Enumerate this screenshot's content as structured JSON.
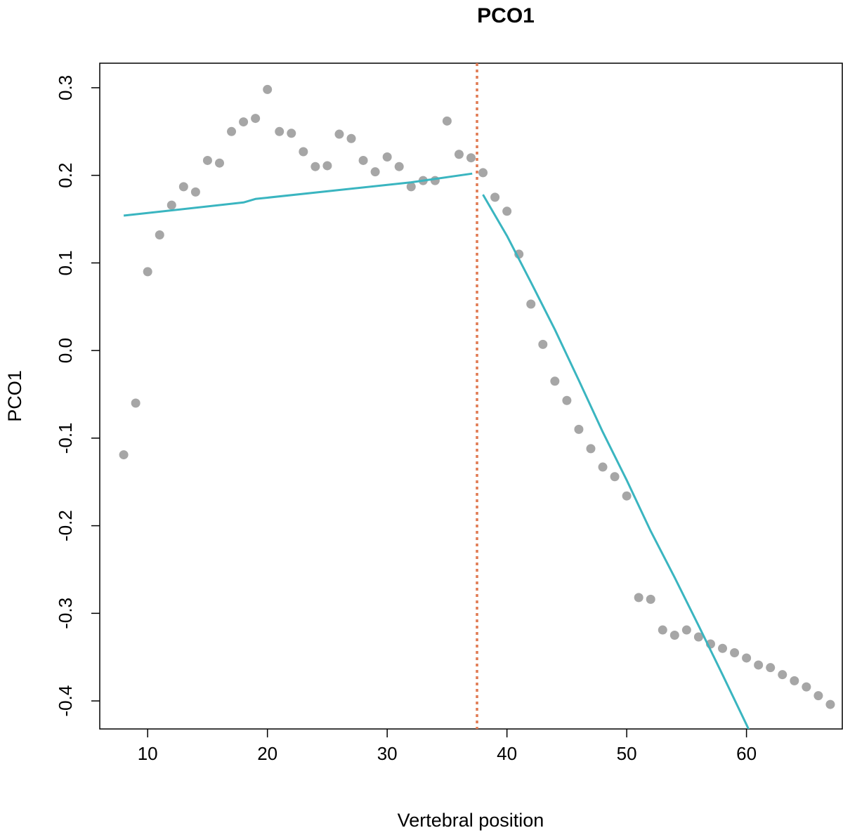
{
  "chart_data": {
    "type": "scatter",
    "title": "PCO1",
    "xlabel": "Vertebral position",
    "ylabel": "PCO1",
    "xlim": [
      6,
      68
    ],
    "ylim": [
      -0.432,
      0.328
    ],
    "xticks": [
      10,
      20,
      30,
      40,
      50,
      60
    ],
    "xtick_labels": [
      "10",
      "20",
      "30",
      "40",
      "50",
      "60"
    ],
    "yticks": [
      0.3,
      0.2,
      0.1,
      0.0,
      -0.1,
      -0.2,
      -0.3,
      -0.4
    ],
    "ytick_labels": [
      "0.3",
      "0.2",
      "0.1",
      "0.0",
      "-0.1",
      "-0.2",
      "-0.3",
      "-0.4"
    ],
    "grid": false,
    "points": {
      "color": "#a6a6a6",
      "x": [
        8,
        9,
        10,
        11,
        12,
        13,
        14,
        15,
        16,
        17,
        18,
        19,
        20,
        21,
        22,
        23,
        24,
        25,
        26,
        27,
        28,
        29,
        30,
        31,
        32,
        33,
        34,
        35,
        36,
        37,
        38,
        39,
        40,
        41,
        42,
        43,
        44,
        45,
        46,
        47,
        48,
        49,
        50,
        51,
        52,
        53,
        54,
        55,
        56,
        57,
        58,
        59,
        60,
        61,
        62,
        63,
        64,
        65,
        66,
        67
      ],
      "y": [
        -0.119,
        -0.06,
        0.09,
        0.132,
        0.166,
        0.187,
        0.181,
        0.217,
        0.214,
        0.25,
        0.261,
        0.265,
        0.298,
        0.25,
        0.248,
        0.227,
        0.21,
        0.211,
        0.247,
        0.242,
        0.217,
        0.204,
        0.221,
        0.21,
        0.187,
        0.194,
        0.194,
        0.262,
        0.224,
        0.22,
        0.203,
        0.175,
        0.159,
        0.11,
        0.053,
        0.007,
        -0.035,
        -0.057,
        -0.09,
        -0.112,
        -0.133,
        -0.144,
        -0.166,
        -0.282,
        -0.284,
        -0.319,
        -0.325,
        -0.319,
        -0.327,
        -0.335,
        -0.34,
        -0.345,
        -0.351,
        -0.359,
        -0.362,
        -0.37,
        -0.377,
        -0.384,
        -0.394,
        -0.404
      ]
    },
    "fit_segments": [
      {
        "color": "#3ab5c0",
        "x": [
          8,
          18,
          19,
          32,
          37.1
        ],
        "y": [
          0.154,
          0.169,
          0.173,
          0.192,
          0.202
        ]
      },
      {
        "color": "#3ab5c0",
        "x": [
          38,
          40,
          42,
          44,
          46,
          48,
          50,
          52,
          54,
          56,
          58,
          60,
          62,
          62.9
        ],
        "y": [
          0.178,
          0.131,
          0.078,
          0.024,
          -0.034,
          -0.093,
          -0.148,
          -0.206,
          -0.259,
          -0.314,
          -0.37,
          -0.427,
          -0.486,
          -0.515
        ]
      }
    ],
    "breakpoint": {
      "x": 37.5,
      "color": "#e07a52",
      "style": "dotted"
    }
  }
}
